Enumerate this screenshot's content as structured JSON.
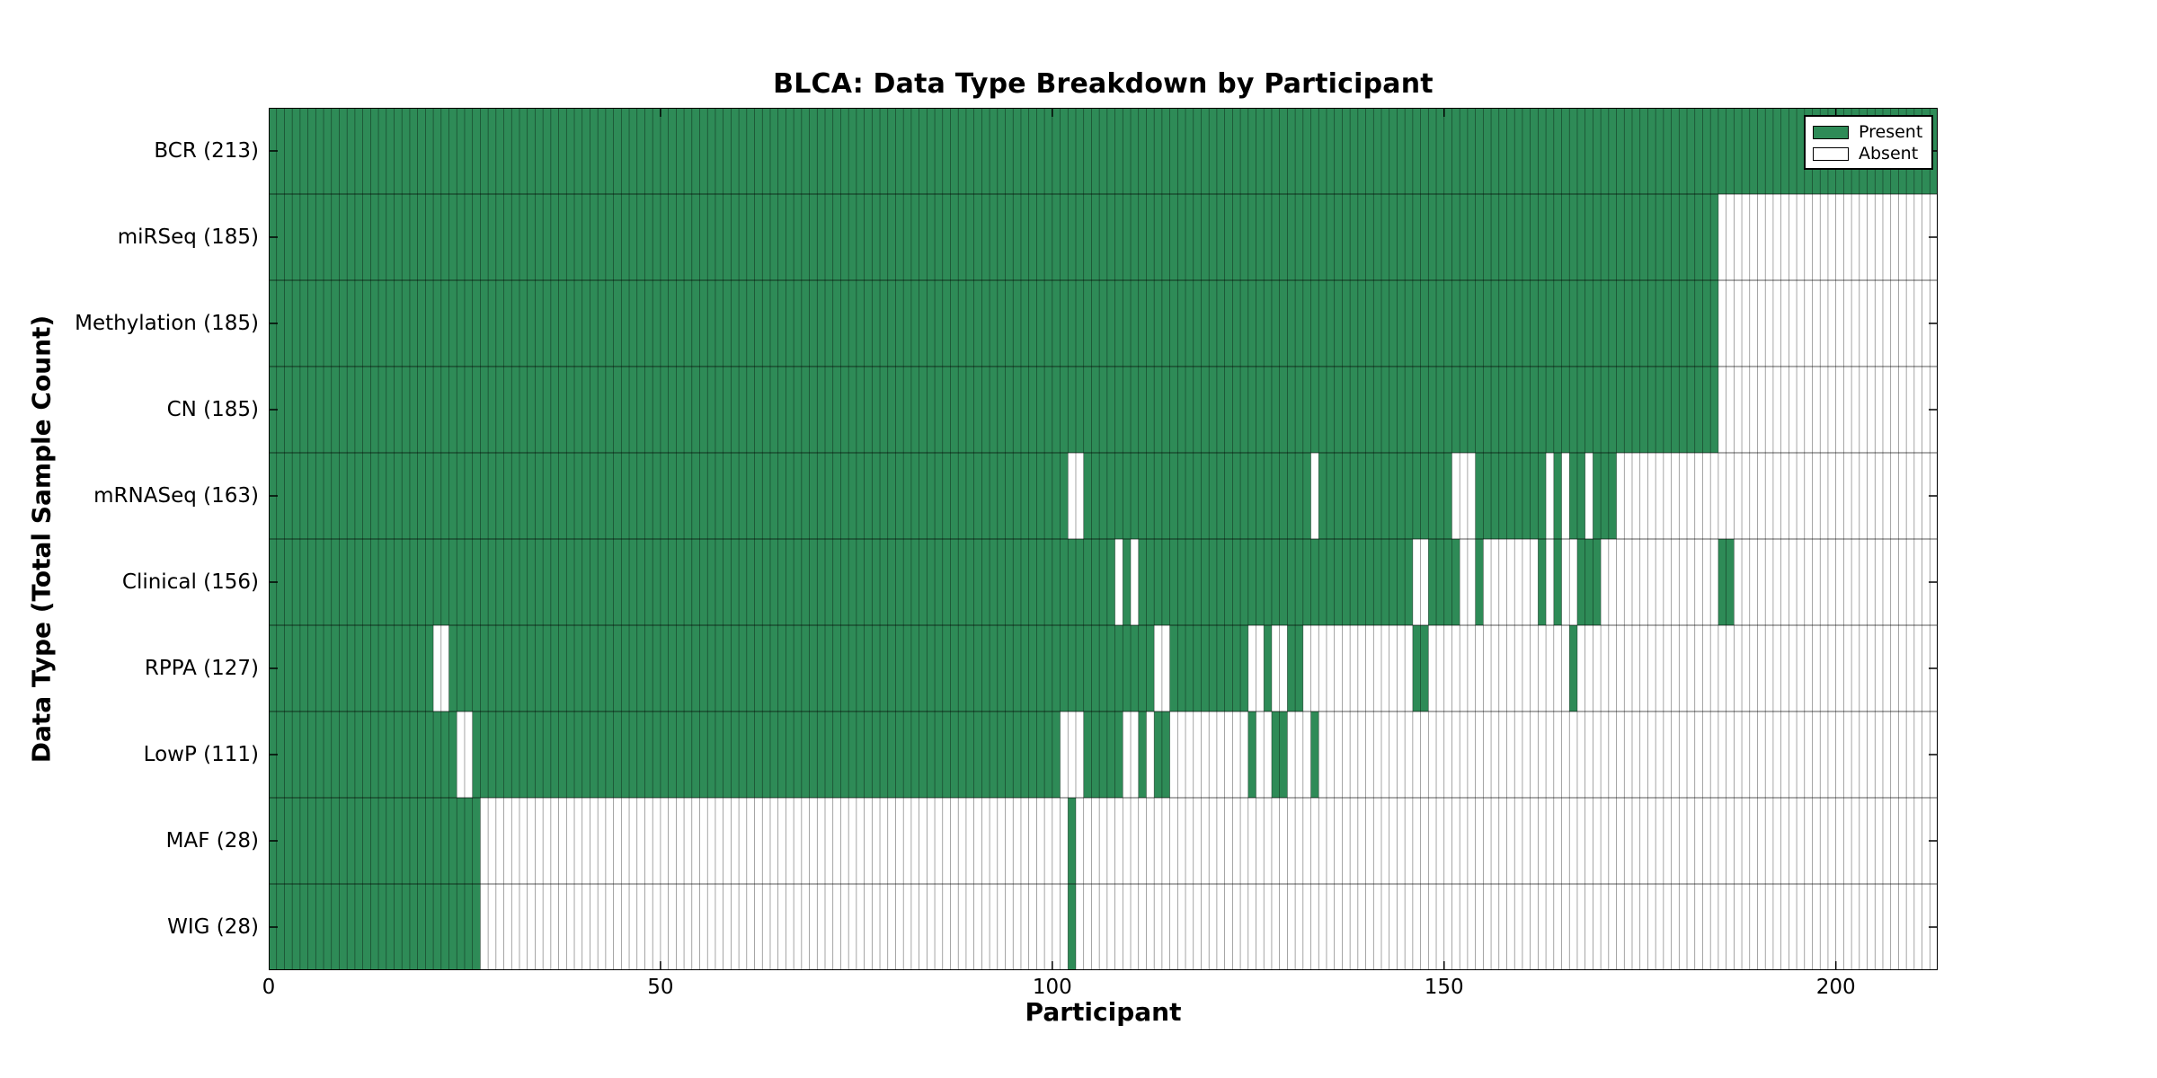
{
  "chart_data": {
    "type": "heatmap",
    "title": "BLCA: Data Type Breakdown by Participant",
    "xlabel": "Participant",
    "ylabel": "Data Type (Total Sample Count)",
    "x_ticks": [
      0,
      50,
      100,
      150,
      200
    ],
    "x_range": [
      0,
      213
    ],
    "n_participants": 213,
    "grid": true,
    "legend_position": "upper right",
    "legend": [
      {
        "label": "Present",
        "color": "#2e8b57"
      },
      {
        "label": "Absent",
        "color": "#ffffff"
      }
    ],
    "colors": {
      "present": "#2e8b57",
      "absent": "#ffffff",
      "cell_line": "rgba(0,0,0,0.50)",
      "row_line": "rgba(0,0,0,0.65)",
      "frame": "#000000"
    },
    "rows": [
      {
        "label": "BCR (213)",
        "data_type": "BCR",
        "count": 213,
        "present_runs": [
          [
            0,
            212
          ]
        ]
      },
      {
        "label": "miRSeq (185)",
        "data_type": "miRSeq",
        "count": 185,
        "present_runs": [
          [
            0,
            184
          ]
        ]
      },
      {
        "label": "Methylation (185)",
        "data_type": "Methylation",
        "count": 185,
        "present_runs": [
          [
            0,
            184
          ]
        ]
      },
      {
        "label": "CN (185)",
        "data_type": "CN",
        "count": 185,
        "present_runs": [
          [
            0,
            184
          ]
        ]
      },
      {
        "label": "mRNASeq (163)",
        "data_type": "mRNASeq",
        "count": 163,
        "present_runs": [
          [
            0,
            101
          ],
          [
            104,
            132
          ],
          [
            134,
            150
          ],
          [
            154,
            162
          ],
          [
            164,
            164
          ],
          [
            166,
            167
          ],
          [
            169,
            171
          ]
        ]
      },
      {
        "label": "Clinical (156)",
        "data_type": "Clinical",
        "count": 156,
        "present_runs": [
          [
            0,
            107
          ],
          [
            109,
            109
          ],
          [
            111,
            145
          ],
          [
            148,
            151
          ],
          [
            154,
            154
          ],
          [
            162,
            162
          ],
          [
            164,
            164
          ],
          [
            167,
            169
          ],
          [
            185,
            186
          ]
        ]
      },
      {
        "label": "RPPA (127)",
        "data_type": "RPPA",
        "count": 127,
        "present_runs": [
          [
            0,
            20
          ],
          [
            23,
            112
          ],
          [
            115,
            124
          ],
          [
            127,
            127
          ],
          [
            130,
            131
          ],
          [
            146,
            147
          ],
          [
            166,
            166
          ]
        ]
      },
      {
        "label": "LowP (111)",
        "data_type": "LowP",
        "count": 111,
        "present_runs": [
          [
            0,
            23
          ],
          [
            26,
            100
          ],
          [
            104,
            108
          ],
          [
            111,
            111
          ],
          [
            113,
            114
          ],
          [
            125,
            125
          ],
          [
            128,
            129
          ],
          [
            133,
            133
          ]
        ]
      },
      {
        "label": "MAF (28)",
        "data_type": "MAF",
        "count": 28,
        "present_runs": [
          [
            0,
            26
          ],
          [
            102,
            102
          ]
        ]
      },
      {
        "label": "WIG (28)",
        "data_type": "WIG",
        "count": 28,
        "present_runs": [
          [
            0,
            26
          ],
          [
            102,
            102
          ]
        ]
      }
    ]
  },
  "layout_note": "matplotlib-style figure"
}
